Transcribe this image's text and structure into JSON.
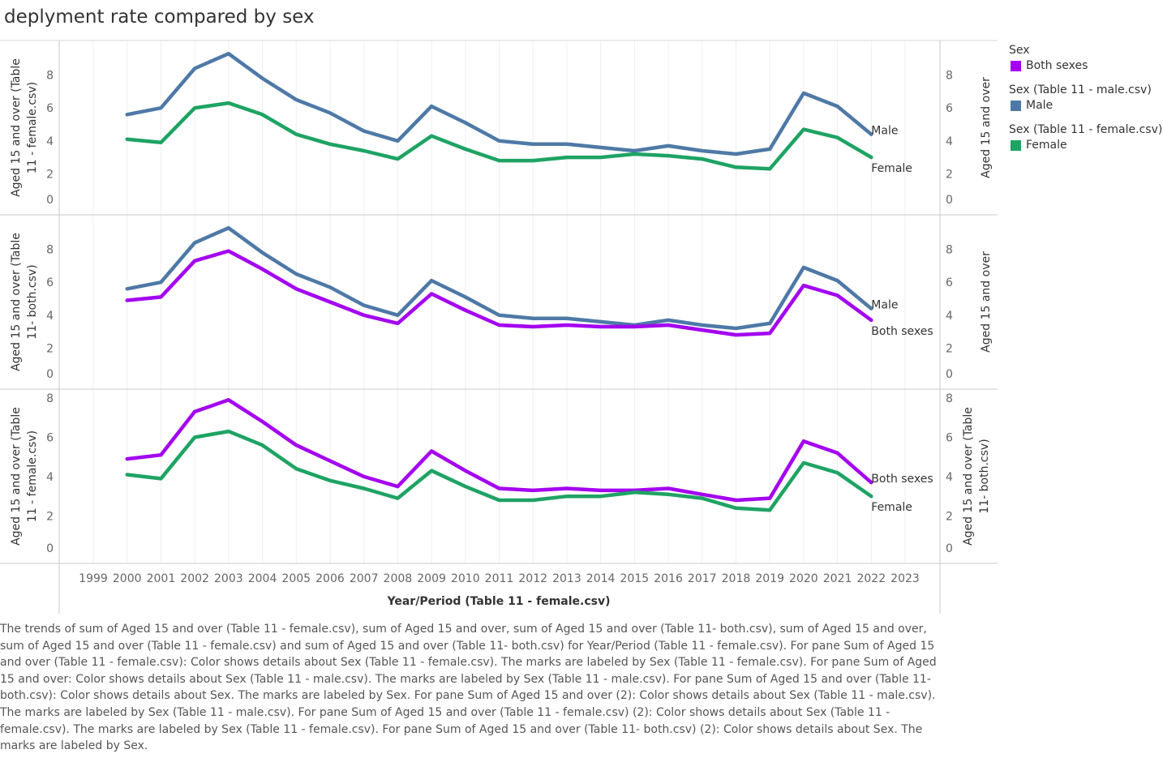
{
  "title": "deplyment rate compared by sex",
  "colors": {
    "Both sexes": "#a400f0",
    "Male": "#4e79a7",
    "Female": "#1ea363"
  },
  "legend": [
    {
      "title": "Sex",
      "label": "Both sexes",
      "color": "#a400f0"
    },
    {
      "title": "Sex (Table 11 - male.csv)",
      "label": "Male",
      "color": "#4e79a7"
    },
    {
      "title": "Sex (Table 11 - female.csv)",
      "label": "Female",
      "color": "#1ea363"
    }
  ],
  "caption": "The trends of sum of Aged 15 and over (Table 11 - female.csv), sum of Aged 15 and over, sum of Aged 15 and over (Table 11- both.csv), sum of Aged 15 and over, sum of Aged 15 and over (Table 11 - female.csv) and sum of Aged 15 and over (Table 11- both.csv) for Year/Period (Table 11 - female.csv).  For pane Sum of Aged 15 and over (Table 11 - female.csv):  Color shows details about Sex (Table 11 - female.csv).  The marks are labeled by Sex (Table 11 - female.csv).  For pane Sum of Aged 15 and over:  Color shows details about Sex (Table 11 - male.csv).  The marks are labeled by Sex (Table 11 - male.csv).  For pane Sum of Aged 15 and over (Table 11- both.csv):  Color shows details about Sex.  The marks are labeled by Sex.  For pane Sum of Aged 15 and over (2):  Color shows details about Sex (Table 11 - male.csv).  The marks are labeled by Sex (Table 11 - male.csv).  For pane Sum of Aged 15 and over (Table 11 - female.csv) (2):  Color shows details about Sex (Table 11 - female.csv).  The marks are labeled by Sex (Table 11 - female.csv).  For pane Sum of Aged 15 and over (Table 11- both.csv) (2):  Color shows details about Sex.  The marks are labeled by Sex.",
  "chart_data": {
    "type": "line",
    "x_label": "Year/Period (Table 11 - female.csv)",
    "x_ticks": [
      1999,
      2000,
      2001,
      2002,
      2003,
      2004,
      2005,
      2006,
      2007,
      2008,
      2009,
      2010,
      2011,
      2012,
      2013,
      2014,
      2015,
      2016,
      2017,
      2018,
      2019,
      2020,
      2021,
      2022,
      2023
    ],
    "xlim": [
      1999,
      2023
    ],
    "x": [
      2000,
      2001,
      2002,
      2003,
      2004,
      2005,
      2006,
      2007,
      2008,
      2009,
      2010,
      2011,
      2012,
      2013,
      2014,
      2015,
      2016,
      2017,
      2018,
      2019,
      2020,
      2021,
      2022
    ],
    "grid": "vertical",
    "legend_position": "right",
    "series": {
      "Male": [
        5.6,
        6.0,
        8.4,
        9.3,
        7.8,
        6.5,
        5.7,
        4.6,
        4.0,
        6.1,
        5.1,
        4.0,
        3.8,
        3.8,
        3.6,
        3.4,
        3.7,
        3.4,
        3.2,
        3.5,
        6.9,
        6.1,
        4.4
      ],
      "Female": [
        4.1,
        3.9,
        6.0,
        6.3,
        5.6,
        4.4,
        3.8,
        3.4,
        2.9,
        4.3,
        3.5,
        2.8,
        2.8,
        3.0,
        3.0,
        3.2,
        3.1,
        2.9,
        2.4,
        2.3,
        4.7,
        4.2,
        3.0
      ],
      "Both sexes": [
        4.9,
        5.1,
        7.3,
        7.9,
        6.8,
        5.6,
        4.8,
        4.0,
        3.5,
        5.3,
        4.3,
        3.4,
        3.3,
        3.4,
        3.3,
        3.3,
        3.4,
        3.1,
        2.8,
        2.9,
        5.8,
        5.2,
        3.7
      ]
    },
    "panes": [
      {
        "left_axis": "Aged 15 and over (Table 11 - female.csv)",
        "right_axis": "Aged 15 and over",
        "ylim": [
          0,
          9.8
        ],
        "ticks": [
          0,
          2,
          4,
          6,
          8
        ],
        "lines": [
          "Male",
          "Female"
        ],
        "labels": [
          "Male",
          "Female"
        ]
      },
      {
        "left_axis": "Aged 15 and over (Table 11- both.csv)",
        "right_axis": "Aged 15 and over",
        "ylim": [
          0,
          9.8
        ],
        "ticks": [
          0,
          2,
          4,
          6,
          8
        ],
        "lines": [
          "Male",
          "Both sexes"
        ],
        "labels": [
          "Male",
          "Both sexes"
        ]
      },
      {
        "left_axis": "Aged 15 and over (Table 11 - female.csv)",
        "right_axis": "Aged 15 and over (Table 11- both.csv)",
        "ylim": [
          0,
          8.2
        ],
        "ticks": [
          0,
          2,
          4,
          6,
          8
        ],
        "lines": [
          "Both sexes",
          "Female"
        ],
        "labels": [
          "Both sexes",
          "Female"
        ]
      }
    ]
  }
}
